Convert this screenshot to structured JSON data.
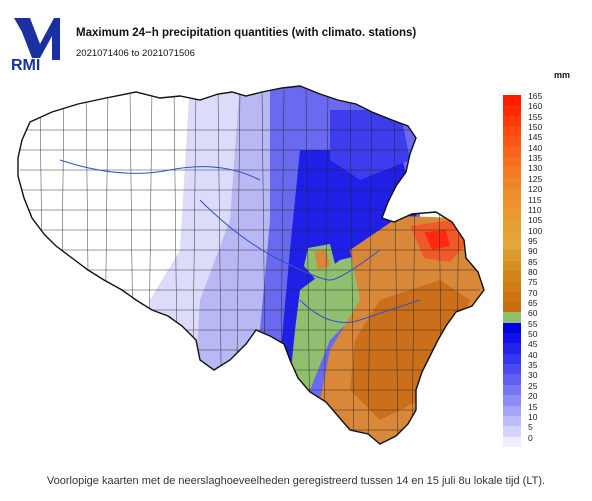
{
  "brand": {
    "logo_text": "RMI",
    "logo_color": "#1a2fa0"
  },
  "header": {
    "title": "Maximum 24−h precipitation quantities (with climato. stations)",
    "period": "2021071406 to 2021071506",
    "unit": "mm"
  },
  "legend": {
    "items": [
      {
        "label": "165",
        "color": "#ff1a00"
      },
      {
        "label": "160",
        "color": "#ff2a00"
      },
      {
        "label": "155",
        "color": "#ff3a08"
      },
      {
        "label": "150",
        "color": "#fd4a0f"
      },
      {
        "label": "145",
        "color": "#fb5815"
      },
      {
        "label": "140",
        "color": "#f9651b"
      },
      {
        "label": "135",
        "color": "#f77020"
      },
      {
        "label": "130",
        "color": "#f47a24"
      },
      {
        "label": "125",
        "color": "#f28428"
      },
      {
        "label": "120",
        "color": "#ef8c2b"
      },
      {
        "label": "115",
        "color": "#ec932e"
      },
      {
        "label": "110",
        "color": "#e99a30"
      },
      {
        "label": "105",
        "color": "#e5a033"
      },
      {
        "label": "100",
        "color": "#e3a336"
      },
      {
        "label": "95",
        "color": "#e0a83a"
      },
      {
        "label": "90",
        "color": "#dd9a2c"
      },
      {
        "label": "85",
        "color": "#d88d22"
      },
      {
        "label": "80",
        "color": "#d4831a"
      },
      {
        "label": "75",
        "color": "#d17b15"
      },
      {
        "label": "70",
        "color": "#cd7411"
      },
      {
        "label": "65",
        "color": "#c96e0e"
      },
      {
        "label": "60",
        "color": "#8fbf6f"
      },
      {
        "label": "55",
        "color": "#0000e6"
      },
      {
        "label": "50",
        "color": "#1010ea"
      },
      {
        "label": "45",
        "color": "#2222ee"
      },
      {
        "label": "40",
        "color": "#3636f0"
      },
      {
        "label": "35",
        "color": "#4a4af2"
      },
      {
        "label": "30",
        "color": "#6060f4"
      },
      {
        "label": "25",
        "color": "#7676f6"
      },
      {
        "label": "20",
        "color": "#8c8cf7"
      },
      {
        "label": "15",
        "color": "#a4a4f9"
      },
      {
        "label": "10",
        "color": "#bcbcfb"
      },
      {
        "label": "5",
        "color": "#d4d4fc"
      },
      {
        "label": "0",
        "color": "#eeeefe"
      }
    ]
  },
  "caption": "Voorlopige kaarten met de neerslaghoeveelheden geregistreerd tussen 14 en 15 juli 8u lokale tijd (LT).",
  "map_colors": {
    "dry": "#ffffff",
    "light_blue": "#c6c6f6",
    "mid_blue": "#6a6af0",
    "deep_blue": "#1f1fe8",
    "green": "#8fbf6f",
    "orange": "#d9883a",
    "dark_orange": "#cc6f1a",
    "red": "#f05a2a",
    "border": "#222222",
    "river": "#3050d0"
  }
}
